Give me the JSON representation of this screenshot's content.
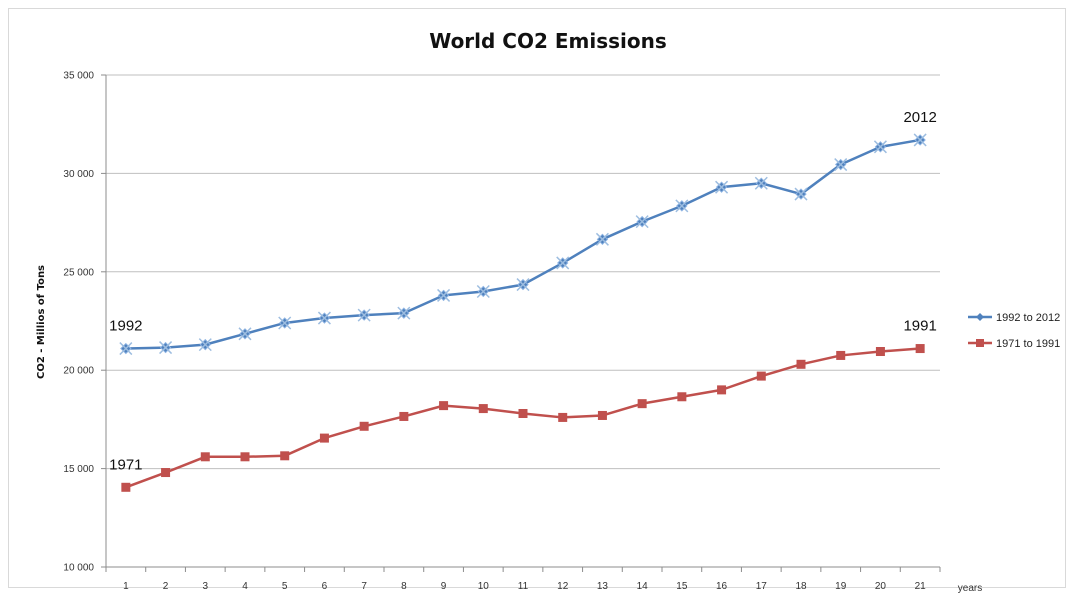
{
  "chart_data": {
    "type": "line",
    "title": "World CO2 Emissions",
    "xlabel": "years",
    "ylabel": "CO2 - Millios of Tons",
    "ylim": [
      10000,
      35000
    ],
    "yticks": [
      10000,
      15000,
      20000,
      25000,
      30000,
      35000
    ],
    "ytick_labels": [
      "10 000",
      "15 000",
      "20 000",
      "25 000",
      "30 000",
      "35 000"
    ],
    "categories": [
      "1",
      "2",
      "3",
      "4",
      "5",
      "6",
      "7",
      "8",
      "9",
      "10",
      "11",
      "12",
      "13",
      "14",
      "15",
      "16",
      "17",
      "18",
      "19",
      "20",
      "21"
    ],
    "grid": "horizontal",
    "legend": "right",
    "series": [
      {
        "name": "1992 to 2012",
        "color": "#4f81bd",
        "marker": "diamond",
        "values": [
          21100,
          21150,
          21300,
          21850,
          22400,
          22650,
          22800,
          22900,
          23800,
          24000,
          24350,
          25450,
          26650,
          27550,
          28350,
          29300,
          29500,
          28950,
          30450,
          31350,
          31700
        ]
      },
      {
        "name": "1971 to 1991",
        "color": "#c0504d",
        "marker": "square",
        "values": [
          14050,
          14800,
          15600,
          15600,
          15650,
          16550,
          17150,
          17650,
          18200,
          18050,
          17800,
          17600,
          17700,
          18300,
          18650,
          19000,
          19700,
          20300,
          20750,
          20950,
          21100
        ]
      }
    ],
    "annotations": [
      {
        "text": "1992",
        "series": 0,
        "point": 0
      },
      {
        "text": "2012",
        "series": 0,
        "point": 20
      },
      {
        "text": "1971",
        "series": 1,
        "point": 0
      },
      {
        "text": "1991",
        "series": 1,
        "point": 20
      }
    ]
  }
}
